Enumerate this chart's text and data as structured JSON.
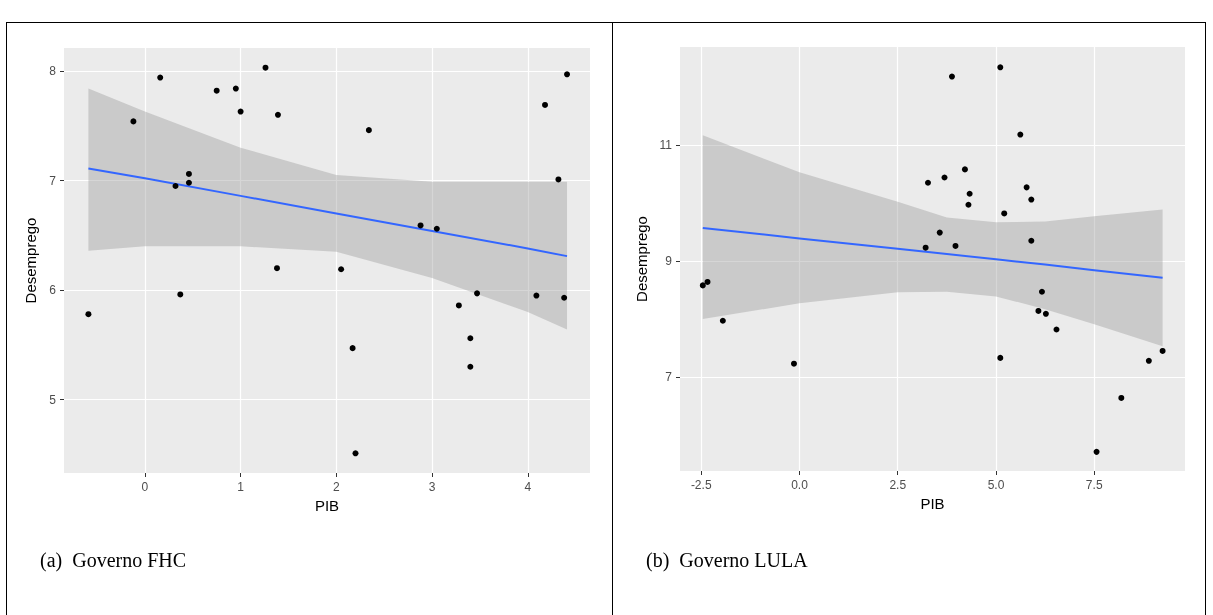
{
  "chart_data": [
    {
      "type": "scatter",
      "title": "(a)  Governo FHC",
      "xlabel": "PIB",
      "ylabel": "Desemprego",
      "xlim": [
        -0.845,
        4.65
      ],
      "xticks": [
        0,
        1,
        2,
        3,
        4
      ],
      "ylim": [
        4.33,
        8.21
      ],
      "yticks": [
        5,
        6,
        7,
        8
      ],
      "grid": true,
      "marker": "circle",
      "series": [
        {
          "type": "scatter",
          "color": "#000000",
          "x": [
            -0.59,
            -0.12,
            0.16,
            0.32,
            0.37,
            0.46,
            0.46,
            0.75,
            0.95,
            1.0,
            1.26,
            1.38,
            1.39,
            2.05,
            2.17,
            2.2,
            2.34,
            2.88,
            3.05,
            3.28,
            3.4,
            3.4,
            3.47,
            4.09,
            4.18,
            4.32,
            4.38,
            4.41
          ],
          "values": [
            5.78,
            7.54,
            7.94,
            6.95,
            5.96,
            7.06,
            6.98,
            7.82,
            7.84,
            7.63,
            8.03,
            6.2,
            7.6,
            6.19,
            5.47,
            4.51,
            7.46,
            6.59,
            6.56,
            5.86,
            5.56,
            5.3,
            5.97,
            5.95,
            7.69,
            7.01,
            5.93,
            7.97
          ]
        },
        {
          "type": "line",
          "color": "#3366ff",
          "marker": "none",
          "x": [
            -0.59,
            0,
            1,
            2,
            3,
            4,
            4.41
          ],
          "values": [
            7.11,
            7.02,
            6.86,
            6.7,
            6.54,
            6.38,
            6.31
          ],
          "lower": [
            6.36,
            6.4,
            6.4,
            6.35,
            6.11,
            5.8,
            5.64
          ],
          "upper": [
            7.84,
            7.63,
            7.3,
            7.05,
            6.99,
            6.99,
            6.99
          ]
        }
      ]
    },
    {
      "type": "scatter",
      "title": "(b)  Governo LULA",
      "xlabel": "PIB",
      "ylabel": "Desemprego",
      "xlim": [
        -3.04,
        9.81
      ],
      "xticks": [
        {
          "value": -2.5,
          "label": "-2.5"
        },
        {
          "value": 0,
          "label": "0.0"
        },
        {
          "value": 2.5,
          "label": "2.5"
        },
        {
          "value": 5,
          "label": "5.0"
        },
        {
          "value": 7.5,
          "label": "7.5"
        }
      ],
      "ylim": [
        5.38,
        12.69
      ],
      "yticks": [
        7,
        9,
        11
      ],
      "grid": true,
      "marker": "circle",
      "series": [
        {
          "type": "scatter",
          "color": "#000000",
          "x": [
            -2.46,
            -2.34,
            -1.95,
            -0.14,
            3.21,
            3.27,
            3.57,
            3.69,
            3.88,
            3.97,
            4.21,
            4.3,
            4.33,
            5.11,
            5.11,
            5.21,
            5.62,
            5.78,
            5.9,
            5.9,
            6.08,
            6.17,
            6.27,
            6.54,
            7.56,
            8.19,
            8.89,
            9.24
          ],
          "values": [
            8.58,
            8.64,
            7.97,
            7.23,
            9.23,
            10.35,
            9.49,
            10.44,
            12.18,
            9.26,
            10.58,
            9.97,
            10.16,
            12.34,
            7.33,
            9.82,
            11.18,
            10.27,
            10.06,
            9.35,
            8.14,
            8.47,
            8.09,
            7.82,
            5.71,
            6.64,
            7.28,
            7.45
          ]
        },
        {
          "type": "line",
          "color": "#3366ff",
          "marker": "none",
          "x": [
            -2.46,
            0,
            2.5,
            3.75,
            5,
            6.25,
            7.5,
            9.24
          ],
          "values": [
            9.57,
            9.39,
            9.21,
            9.12,
            9.03,
            8.94,
            8.84,
            8.71
          ],
          "lower": [
            8.0,
            8.27,
            8.46,
            8.47,
            8.39,
            8.17,
            7.91,
            7.53
          ],
          "upper": [
            11.17,
            10.53,
            10.02,
            9.75,
            9.67,
            9.68,
            9.77,
            9.89
          ]
        }
      ]
    }
  ]
}
